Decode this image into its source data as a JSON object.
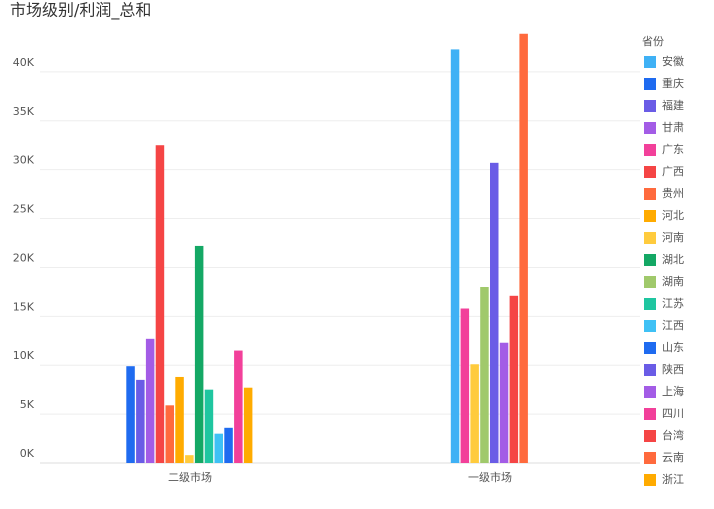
{
  "chart_data": {
    "type": "bar",
    "title": "市场级别/利润_总和",
    "legend_title": "省份",
    "legend": "right",
    "categories": [
      "二级市场",
      "一级市场"
    ],
    "ylim": [
      0,
      45000
    ],
    "yticks": [
      {
        "value": 0,
        "label": "0K"
      },
      {
        "value": 5000,
        "label": "5K"
      },
      {
        "value": 10000,
        "label": "10K"
      },
      {
        "value": 15000,
        "label": "15K"
      },
      {
        "value": 20000,
        "label": "20K"
      },
      {
        "value": 25000,
        "label": "25K"
      },
      {
        "value": 30000,
        "label": "30K"
      },
      {
        "value": 35000,
        "label": "35K"
      },
      {
        "value": 40000,
        "label": "40K"
      }
    ],
    "grid": true,
    "series": [
      {
        "name": "安徽",
        "color": "#3fb1f5",
        "values": [
          null,
          42300
        ]
      },
      {
        "name": "重庆",
        "color": "#1f6bf0",
        "values": [
          9900,
          null
        ]
      },
      {
        "name": "福建",
        "color": "#6a5ce6",
        "values": [
          8500,
          null
        ]
      },
      {
        "name": "甘肃",
        "color": "#a35ce6",
        "values": [
          12700,
          null
        ]
      },
      {
        "name": "广东",
        "color": "#f2409a",
        "values": [
          null,
          15800
        ]
      },
      {
        "name": "广西",
        "color": "#f54545",
        "values": [
          32500,
          null
        ]
      },
      {
        "name": "贵州",
        "color": "#ff6a3d",
        "values": [
          5900,
          null
        ]
      },
      {
        "name": "河北",
        "color": "#ffab00",
        "values": [
          8800,
          null
        ]
      },
      {
        "name": "河南",
        "color": "#ffcb3d",
        "values": [
          800,
          10100
        ]
      },
      {
        "name": "湖北",
        "color": "#14a865",
        "values": [
          22200,
          null
        ]
      },
      {
        "name": "湖南",
        "color": "#a0c96b",
        "values": [
          null,
          18000
        ]
      },
      {
        "name": "江苏",
        "color": "#1fc6a0",
        "values": [
          7500,
          null
        ]
      },
      {
        "name": "江西",
        "color": "#3fc1f5",
        "values": [
          3000,
          null
        ]
      },
      {
        "name": "山东",
        "color": "#1f6bf0",
        "values": [
          3600,
          null
        ]
      },
      {
        "name": "陕西",
        "color": "#6a5ce6",
        "values": [
          null,
          30700
        ]
      },
      {
        "name": "上海",
        "color": "#a35ce6",
        "values": [
          null,
          12300
        ]
      },
      {
        "name": "四川",
        "color": "#f2409a",
        "values": [
          11500,
          null
        ]
      },
      {
        "name": "台湾",
        "color": "#f54545",
        "values": [
          null,
          17100
        ]
      },
      {
        "name": "云南",
        "color": "#ff6a3d",
        "values": [
          null,
          43900
        ]
      },
      {
        "name": "浙江",
        "color": "#ffab00",
        "values": [
          7700,
          null
        ]
      }
    ]
  }
}
